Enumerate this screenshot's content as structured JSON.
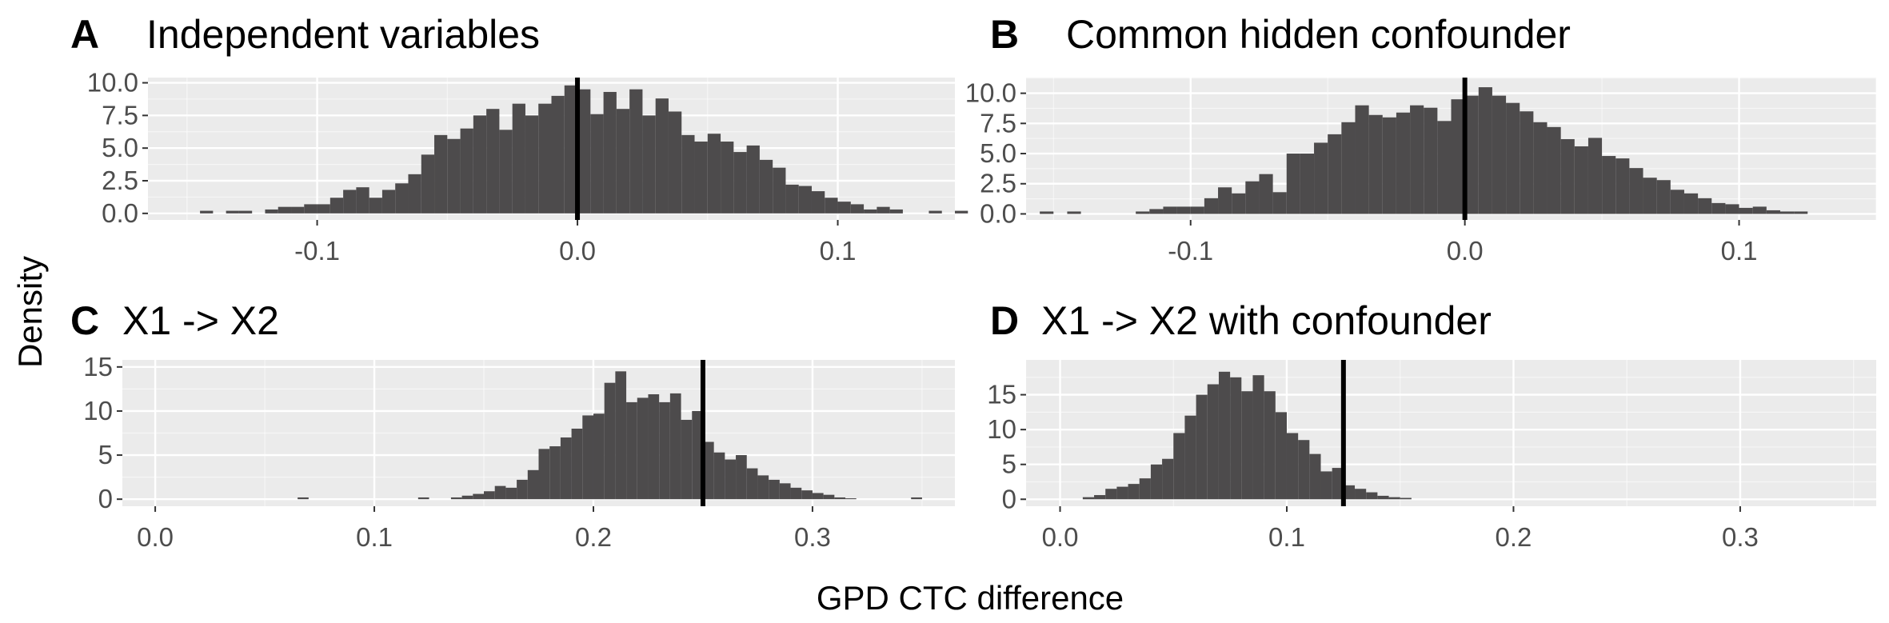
{
  "figure": {
    "xlabel": "GPD CTC difference",
    "ylabel": "Density"
  },
  "colors": {
    "panel_bg": "#ebebeb",
    "grid_major": "#ffffff",
    "bar_fill": "#4d4b4c",
    "vline": "#000000",
    "tick_text": "#4d4d4d"
  },
  "chart_data": [
    {
      "type": "bar",
      "tag": "A",
      "title": "Independent variables",
      "xlim": [
        -0.165,
        0.145
      ],
      "ylim": [
        -0.5,
        10.4
      ],
      "xticks": [
        -0.1,
        0.0,
        0.1
      ],
      "xtick_labels": [
        "-0.1",
        "0.0",
        "0.1"
      ],
      "yticks": [
        0,
        2.5,
        5,
        7.5,
        10
      ],
      "ytick_labels": [
        "0.0",
        "2.5",
        "5.0",
        "7.5",
        "10.0"
      ],
      "bin_width": 0.005,
      "bin_start": -0.145,
      "values": [
        0.2,
        0,
        0.2,
        0.2,
        0,
        0.3,
        0.5,
        0.5,
        0.7,
        0.7,
        1.2,
        1.8,
        2.0,
        1.2,
        1.8,
        2.3,
        3.0,
        4.5,
        6.0,
        5.7,
        6.5,
        7.5,
        8.0,
        6.4,
        8.4,
        7.5,
        8.4,
        9.0,
        9.8,
        9.5,
        7.6,
        9.3,
        8.0,
        9.5,
        7.5,
        8.8,
        7.8,
        6.0,
        5.5,
        6.1,
        5.5,
        4.7,
        5.2,
        4.1,
        3.5,
        2.2,
        2.1,
        1.7,
        1.2,
        0.9,
        0.7,
        0.3,
        0.5,
        0.3,
        0,
        0,
        0.2,
        0,
        0.2
      ],
      "vline": 0.0
    },
    {
      "type": "bar",
      "tag": "B",
      "title": "Common hidden confounder",
      "xlim": [
        -0.16,
        0.15
      ],
      "ylim": [
        -0.5,
        11.3
      ],
      "xticks": [
        -0.1,
        0.0,
        0.1
      ],
      "xtick_labels": [
        "-0.1",
        "0.0",
        "0.1"
      ],
      "yticks": [
        0,
        2.5,
        5,
        7.5,
        10
      ],
      "ytick_labels": [
        "0.0",
        "2.5",
        "5.0",
        "7.5",
        "10.0"
      ],
      "bin_width": 0.005,
      "bin_start": -0.155,
      "values": [
        0.2,
        0,
        0.2,
        0,
        0,
        0,
        0,
        0.2,
        0.4,
        0.6,
        0.6,
        0.6,
        1.3,
        2.2,
        1.7,
        2.7,
        3.3,
        1.8,
        5.0,
        5.0,
        5.9,
        6.6,
        7.6,
        9.0,
        8.2,
        8.0,
        8.4,
        9.0,
        8.8,
        7.7,
        9.5,
        9.8,
        10.5,
        9.8,
        9.2,
        8.5,
        7.6,
        7.2,
        6.2,
        5.6,
        6.3,
        4.8,
        4.6,
        3.8,
        3.0,
        2.8,
        2.0,
        1.7,
        1.3,
        0.9,
        0.8,
        0.5,
        0.6,
        0.3,
        0.2,
        0.2
      ],
      "vline": 0.0
    },
    {
      "type": "bar",
      "tag": "C",
      "title": "X1 -> X2",
      "xlim": [
        -0.015,
        0.365
      ],
      "ylim": [
        -0.8,
        15.8
      ],
      "xticks": [
        0.0,
        0.1,
        0.2,
        0.3
      ],
      "xtick_labels": [
        "0.0",
        "0.1",
        "0.2",
        "0.3"
      ],
      "yticks": [
        0,
        5,
        10,
        15
      ],
      "ytick_labels": [
        "0",
        "5",
        "10",
        "15"
      ],
      "bin_width": 0.005,
      "bin_start": 0.065,
      "values": [
        0.2,
        0,
        0,
        0,
        0,
        0,
        0,
        0,
        0,
        0,
        0,
        0.2,
        0,
        0,
        0.2,
        0.4,
        0.6,
        0.9,
        1.5,
        1.3,
        2.2,
        3.3,
        5.7,
        6.0,
        7.0,
        8.0,
        9.5,
        9.7,
        13.2,
        14.5,
        11.0,
        11.5,
        11.9,
        11.0,
        12.0,
        9.0,
        10.0,
        6.5,
        5.3,
        4.5,
        5.0,
        3.5,
        2.7,
        2.2,
        1.8,
        1.3,
        1.0,
        0.7,
        0.5,
        0.2,
        0.1,
        0,
        0,
        0,
        0,
        0,
        0.2
      ],
      "vline": 0.25
    },
    {
      "type": "bar",
      "tag": "D",
      "title": "X1 -> X2 with confounder",
      "xlim": [
        -0.015,
        0.36
      ],
      "ylim": [
        -1.0,
        20.0
      ],
      "xticks": [
        0.0,
        0.1,
        0.2,
        0.3
      ],
      "xtick_labels": [
        "0.0",
        "0.1",
        "0.2",
        "0.3"
      ],
      "yticks": [
        0,
        5,
        10,
        15
      ],
      "ytick_labels": [
        "0",
        "5",
        "10",
        "15"
      ],
      "bin_width": 0.005,
      "bin_start": 0.01,
      "values": [
        0.3,
        0.6,
        1.5,
        1.8,
        2.2,
        3.0,
        5.0,
        5.8,
        9.5,
        12.0,
        15.0,
        16.5,
        18.3,
        17.5,
        15.5,
        17.8,
        15.5,
        12.5,
        9.5,
        8.5,
        6.5,
        4.0,
        4.5,
        2.0,
        1.5,
        1.0,
        0.5,
        0.3,
        0.2
      ],
      "vline": 0.125
    }
  ]
}
